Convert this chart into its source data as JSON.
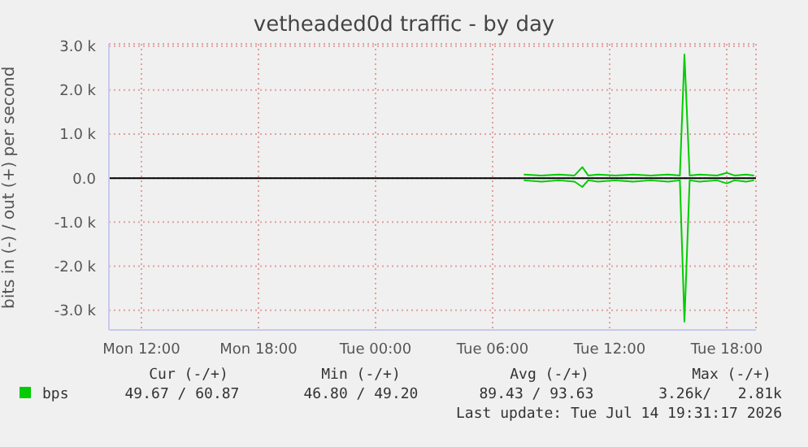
{
  "chart_data": {
    "type": "line",
    "title": "vetheaded0d traffic - by day",
    "ylabel": "bits in (-) / out (+) per second",
    "series": [
      {
        "name": "bps",
        "color": "#00cc00",
        "x": [
          "2026-07-14T07:36",
          "2026-07-14T08:30",
          "2026-07-14T09:24",
          "2026-07-14T10:12",
          "2026-07-14T10:36",
          "2026-07-14T10:54",
          "2026-07-14T11:24",
          "2026-07-14T12:18",
          "2026-07-14T13:12",
          "2026-07-14T14:06",
          "2026-07-14T15:00",
          "2026-07-14T15:36",
          "2026-07-14T15:50",
          "2026-07-14T16:06",
          "2026-07-14T16:36",
          "2026-07-14T17:30",
          "2026-07-14T18:00",
          "2026-07-14T18:24",
          "2026-07-14T19:00",
          "2026-07-14T19:24"
        ],
        "values": [
          80,
          60,
          80,
          60,
          250,
          60,
          80,
          60,
          80,
          60,
          80,
          60,
          2810,
          60,
          80,
          60,
          120,
          60,
          80,
          60
        ]
      },
      {
        "color": "#00cc00",
        "x": [
          "2026-07-14T07:36",
          "2026-07-14T08:30",
          "2026-07-14T09:24",
          "2026-07-14T10:12",
          "2026-07-14T10:36",
          "2026-07-14T10:54",
          "2026-07-14T11:24",
          "2026-07-14T12:18",
          "2026-07-14T13:12",
          "2026-07-14T14:06",
          "2026-07-14T15:00",
          "2026-07-14T15:36",
          "2026-07-14T15:50",
          "2026-07-14T16:06",
          "2026-07-14T16:36",
          "2026-07-14T17:30",
          "2026-07-14T18:00",
          "2026-07-14T18:24",
          "2026-07-14T19:00",
          "2026-07-14T19:24"
        ],
        "values": [
          -50,
          -80,
          -50,
          -80,
          -200,
          -50,
          -80,
          -50,
          -80,
          -50,
          -80,
          -50,
          -3260,
          -50,
          -80,
          -50,
          -120,
          -50,
          -80,
          -50
        ]
      }
    ],
    "xlim": [
      "2026-07-13T10:20",
      "2026-07-14T19:30"
    ],
    "xticks": [
      {
        "value": "2026-07-13T12:00",
        "label": "Mon 12:00"
      },
      {
        "value": "2026-07-13T18:00",
        "label": "Mon 18:00"
      },
      {
        "value": "2026-07-14T00:00",
        "label": "Tue 00:00"
      },
      {
        "value": "2026-07-14T06:00",
        "label": "Tue 06:00"
      },
      {
        "value": "2026-07-14T12:00",
        "label": "Tue 12:00"
      },
      {
        "value": "2026-07-14T18:00",
        "label": "Tue 18:00"
      }
    ],
    "ylim": [
      -3450,
      3050
    ],
    "yticks": [
      {
        "value": -3000,
        "label": "-3.0 k"
      },
      {
        "value": -2000,
        "label": "-2.0 k"
      },
      {
        "value": -1000,
        "label": "-1.0 k"
      },
      {
        "value": 0,
        "label": "0.0"
      },
      {
        "value": 1000,
        "label": "1.0 k"
      },
      {
        "value": 2000,
        "label": "2.0 k"
      },
      {
        "value": 3000,
        "label": "3.0 k"
      }
    ],
    "grid": true,
    "legend": "bottom",
    "marker": "none",
    "line_style": "solid",
    "ref_lines": [
      {
        "axis": "y",
        "value": 0,
        "color": "#000000"
      }
    ],
    "annotations": [
      "Cur (-/+)",
      "Min (-/+)",
      "Avg (-/+)",
      "Max (-/+)",
      "49.67 / 60.87",
      "46.80 / 49.20",
      "89.43 / 93.63",
      "3.26k/   2.81k",
      "Last update: Tue Jul 14 19:31:17 2026"
    ]
  }
}
